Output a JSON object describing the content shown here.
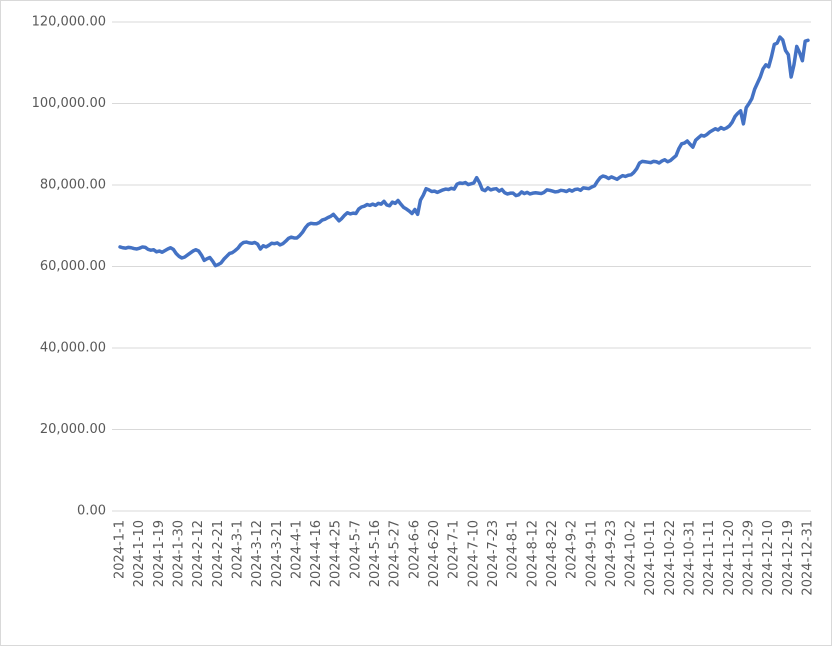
{
  "chart_data": {
    "type": "line",
    "categories": [
      "2024-1-1",
      null,
      null,
      null,
      null,
      null,
      null,
      "2024-1-10",
      null,
      null,
      null,
      null,
      null,
      null,
      "2024-1-19",
      null,
      null,
      null,
      null,
      null,
      null,
      "2024-1-30",
      null,
      null,
      null,
      null,
      null,
      null,
      "2024-2-12",
      null,
      null,
      null,
      null,
      null,
      null,
      "2024-2-21",
      null,
      null,
      null,
      null,
      null,
      null,
      "2024-3-1",
      null,
      null,
      null,
      null,
      null,
      null,
      "2024-3-12",
      null,
      null,
      null,
      null,
      null,
      null,
      "2024-3-21",
      null,
      null,
      null,
      null,
      null,
      null,
      "2024-4-1",
      null,
      null,
      null,
      null,
      null,
      null,
      "2024-4-16",
      null,
      null,
      null,
      null,
      null,
      null,
      "2024-4-25",
      null,
      null,
      null,
      null,
      null,
      null,
      "2024-5-7",
      null,
      null,
      null,
      null,
      null,
      null,
      "2024-5-16",
      null,
      null,
      null,
      null,
      null,
      null,
      "2024-5-27",
      null,
      null,
      null,
      null,
      null,
      null,
      "2024-6-6",
      null,
      null,
      null,
      null,
      null,
      null,
      "2024-6-20",
      null,
      null,
      null,
      null,
      null,
      null,
      "2024-7-1",
      null,
      null,
      null,
      null,
      null,
      null,
      "2024-7-10",
      null,
      null,
      null,
      null,
      null,
      null,
      "2024-7-23",
      null,
      null,
      null,
      null,
      null,
      null,
      "2024-8-1",
      null,
      null,
      null,
      null,
      null,
      null,
      "2024-8-12",
      null,
      null,
      null,
      null,
      null,
      null,
      "2024-8-22",
      null,
      null,
      null,
      null,
      null,
      null,
      "2024-9-2",
      null,
      null,
      null,
      null,
      null,
      null,
      "2024-9-11",
      null,
      null,
      null,
      null,
      null,
      null,
      "2024-9-23",
      null,
      null,
      null,
      null,
      null,
      null,
      "2024-10-2",
      null,
      null,
      null,
      null,
      null,
      null,
      "2024-10-11",
      null,
      null,
      null,
      null,
      null,
      null,
      "2024-10-22",
      null,
      null,
      null,
      null,
      null,
      null,
      "2024-10-31",
      null,
      null,
      null,
      null,
      null,
      null,
      "2024-11-11",
      null,
      null,
      null,
      null,
      null,
      null,
      "2024-11-20",
      null,
      null,
      null,
      null,
      null,
      null,
      "2024-11-29",
      null,
      null,
      null,
      null,
      null,
      null,
      "2024-12-10",
      null,
      null,
      null,
      null,
      null,
      null,
      "2024-12-19",
      null,
      null,
      null,
      null,
      null,
      null,
      "2024-12-31"
    ],
    "series": [
      {
        "color": "#4472c4",
        "values": [
          64800,
          64600,
          64500,
          64700,
          64600,
          64400,
          64300,
          64500,
          64800,
          64700,
          64200,
          64000,
          64100,
          63600,
          63800,
          63500,
          63900,
          64300,
          64600,
          64200,
          63200,
          62500,
          62100,
          62300,
          62800,
          63300,
          63800,
          64100,
          63800,
          62800,
          61500,
          61900,
          62200,
          61300,
          60200,
          60500,
          60900,
          61800,
          62500,
          63200,
          63400,
          63900,
          64500,
          65400,
          65900,
          66000,
          65800,
          65700,
          65900,
          65500,
          64300,
          65100,
          64800,
          65200,
          65700,
          65600,
          65800,
          65300,
          65600,
          66200,
          66900,
          67200,
          67000,
          67000,
          67600,
          68400,
          69500,
          70300,
          70600,
          70500,
          70500,
          70800,
          71400,
          71600,
          72000,
          72300,
          72800,
          72000,
          71200,
          71800,
          72600,
          73200,
          72900,
          73100,
          73000,
          74100,
          74600,
          74800,
          75200,
          75000,
          75300,
          75000,
          75500,
          75300,
          76000,
          75100,
          74900,
          75800,
          75500,
          76200,
          75300,
          74500,
          74100,
          73600,
          73000,
          74000,
          72800,
          76300,
          77500,
          79100,
          78800,
          78400,
          78500,
          78200,
          78500,
          78800,
          79000,
          78900,
          79200,
          79000,
          80200,
          80500,
          80400,
          80600,
          80100,
          80300,
          80500,
          81800,
          80600,
          78900,
          78600,
          79300,
          78800,
          79000,
          79100,
          78500,
          78900,
          78100,
          77800,
          78000,
          78000,
          77400,
          77600,
          78300,
          77900,
          78200,
          77800,
          78000,
          78100,
          78000,
          77900,
          78200,
          78800,
          78700,
          78500,
          78300,
          78400,
          78700,
          78600,
          78400,
          78800,
          78500,
          78900,
          79000,
          78700,
          79300,
          79200,
          79100,
          79500,
          79800,
          80900,
          81800,
          82200,
          82000,
          81600,
          82000,
          81700,
          81400,
          81900,
          82300,
          82100,
          82400,
          82500,
          83100,
          84000,
          85400,
          85800,
          85700,
          85600,
          85500,
          85800,
          85700,
          85400,
          85900,
          86200,
          85700,
          86000,
          86600,
          87200,
          88900,
          90100,
          90300,
          90800,
          90000,
          89300,
          91000,
          91600,
          92200,
          92000,
          92400,
          93000,
          93400,
          93800,
          93500,
          94100,
          93700,
          94000,
          94500,
          95400,
          96800,
          97600,
          98200,
          95000,
          99000,
          100000,
          101200,
          103500,
          105000,
          106500,
          108500,
          109500,
          109000,
          111500,
          114500,
          114800,
          116300,
          115600,
          113000,
          112000,
          106500,
          109500,
          114000,
          112500,
          110500,
          115300,
          115500
        ]
      }
    ],
    "ylim": [
      0,
      120000
    ],
    "yticks": [
      {
        "value": 0,
        "label": "0.00"
      },
      {
        "value": 20000,
        "label": "20,000.00"
      },
      {
        "value": 40000,
        "label": "40,000.00"
      },
      {
        "value": 60000,
        "label": "60,000.00"
      },
      {
        "value": 80000,
        "label": "80,000.00"
      },
      {
        "value": 100000,
        "label": "100,000.00"
      },
      {
        "value": 120000,
        "label": "120,000.00"
      }
    ],
    "grid": true
  }
}
